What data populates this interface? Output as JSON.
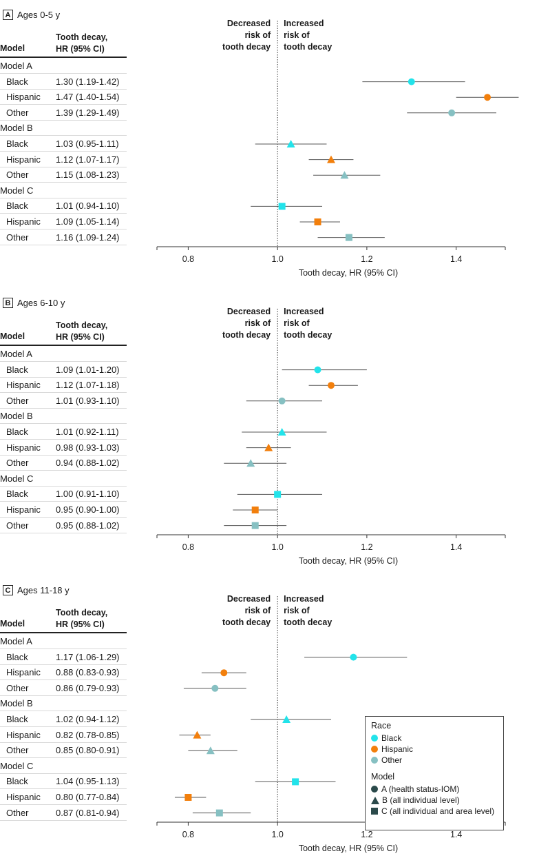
{
  "table_headers": {
    "model": "Model",
    "hr_line1": "Tooth decay,",
    "hr_line2": "HR (95% CI)"
  },
  "direction_labels": {
    "left": [
      "Decreased",
      "risk of",
      "tooth decay"
    ],
    "right": [
      "Increased",
      "risk of",
      "tooth decay"
    ]
  },
  "legend": {
    "race_title": "Race",
    "race_items": [
      {
        "label": "Black",
        "color": "#22e3ea"
      },
      {
        "label": "Hispanic",
        "color": "#f27f0c"
      },
      {
        "label": "Other",
        "color": "#86c0c2"
      }
    ],
    "model_title": "Model",
    "model_items": [
      {
        "label": "A (health status-IOM)",
        "shape": "circle-icon"
      },
      {
        "label": "B (all individual level)",
        "shape": "triangle-icon"
      },
      {
        "label": "C (all individual and area level)",
        "shape": "square-icon"
      }
    ],
    "symbol_color": "#2b4a4b"
  },
  "chart_data": [
    {
      "type": "forest",
      "panel": "A",
      "title": "Ages 0-5 y",
      "xlabel": "Tooth decay, HR (95% CI)",
      "xlim": [
        0.73,
        1.51
      ],
      "xticks": [
        "0.8",
        "1.0",
        "1.2",
        "1.4"
      ],
      "reference_line": 1.0,
      "groups": [
        {
          "model": "Model A",
          "shape": "circle",
          "rows": [
            {
              "race": "Black",
              "label": "1.30 (1.19-1.42)",
              "hr": 1.3,
              "lo": 1.19,
              "hi": 1.42
            },
            {
              "race": "Hispanic",
              "label": "1.47 (1.40-1.54)",
              "hr": 1.47,
              "lo": 1.4,
              "hi": 1.54
            },
            {
              "race": "Other",
              "label": "1.39 (1.29-1.49)",
              "hr": 1.39,
              "lo": 1.29,
              "hi": 1.49
            }
          ]
        },
        {
          "model": "Model B",
          "shape": "triangle",
          "rows": [
            {
              "race": "Black",
              "label": "1.03 (0.95-1.11)",
              "hr": 1.03,
              "lo": 0.95,
              "hi": 1.11
            },
            {
              "race": "Hispanic",
              "label": "1.12 (1.07-1.17)",
              "hr": 1.12,
              "lo": 1.07,
              "hi": 1.17
            },
            {
              "race": "Other",
              "label": "1.15 (1.08-1.23)",
              "hr": 1.15,
              "lo": 1.08,
              "hi": 1.23
            }
          ]
        },
        {
          "model": "Model C",
          "shape": "square",
          "rows": [
            {
              "race": "Black",
              "label": "1.01 (0.94-1.10)",
              "hr": 1.01,
              "lo": 0.94,
              "hi": 1.1
            },
            {
              "race": "Hispanic",
              "label": "1.09 (1.05-1.14)",
              "hr": 1.09,
              "lo": 1.05,
              "hi": 1.14
            },
            {
              "race": "Other",
              "label": "1.16 (1.09-1.24)",
              "hr": 1.16,
              "lo": 1.09,
              "hi": 1.24
            }
          ]
        }
      ]
    },
    {
      "type": "forest",
      "panel": "B",
      "title": "Ages 6-10 y",
      "xlabel": "Tooth decay, HR (95% CI)",
      "xlim": [
        0.73,
        1.51
      ],
      "xticks": [
        "0.8",
        "1.0",
        "1.2",
        "1.4"
      ],
      "reference_line": 1.0,
      "groups": [
        {
          "model": "Model A",
          "shape": "circle",
          "rows": [
            {
              "race": "Black",
              "label": "1.09 (1.01-1.20)",
              "hr": 1.09,
              "lo": 1.01,
              "hi": 1.2
            },
            {
              "race": "Hispanic",
              "label": "1.12 (1.07-1.18)",
              "hr": 1.12,
              "lo": 1.07,
              "hi": 1.18
            },
            {
              "race": "Other",
              "label": "1.01 (0.93-1.10)",
              "hr": 1.01,
              "lo": 0.93,
              "hi": 1.1
            }
          ]
        },
        {
          "model": "Model B",
          "shape": "triangle",
          "rows": [
            {
              "race": "Black",
              "label": "1.01 (0.92-1.11)",
              "hr": 1.01,
              "lo": 0.92,
              "hi": 1.11
            },
            {
              "race": "Hispanic",
              "label": "0.98 (0.93-1.03)",
              "hr": 0.98,
              "lo": 0.93,
              "hi": 1.03
            },
            {
              "race": "Other",
              "label": "0.94 (0.88-1.02)",
              "hr": 0.94,
              "lo": 0.88,
              "hi": 1.02
            }
          ]
        },
        {
          "model": "Model C",
          "shape": "square",
          "rows": [
            {
              "race": "Black",
              "label": "1.00 (0.91-1.10)",
              "hr": 1.0,
              "lo": 0.91,
              "hi": 1.1
            },
            {
              "race": "Hispanic",
              "label": "0.95 (0.90-1.00)",
              "hr": 0.95,
              "lo": 0.9,
              "hi": 1.0
            },
            {
              "race": "Other",
              "label": "0.95 (0.88-1.02)",
              "hr": 0.95,
              "lo": 0.88,
              "hi": 1.02
            }
          ]
        }
      ]
    },
    {
      "type": "forest",
      "panel": "C",
      "title": "Ages 11-18 y",
      "xlabel": "Tooth decay, HR (95% CI)",
      "xlim": [
        0.73,
        1.51
      ],
      "xticks": [
        "0.8",
        "1.0",
        "1.2",
        "1.4"
      ],
      "reference_line": 1.0,
      "groups": [
        {
          "model": "Model A",
          "shape": "circle",
          "rows": [
            {
              "race": "Black",
              "label": "1.17 (1.06-1.29)",
              "hr": 1.17,
              "lo": 1.06,
              "hi": 1.29
            },
            {
              "race": "Hispanic",
              "label": "0.88 (0.83-0.93)",
              "hr": 0.88,
              "lo": 0.83,
              "hi": 0.93
            },
            {
              "race": "Other",
              "label": "0.86 (0.79-0.93)",
              "hr": 0.86,
              "lo": 0.79,
              "hi": 0.93
            }
          ]
        },
        {
          "model": "Model B",
          "shape": "triangle",
          "rows": [
            {
              "race": "Black",
              "label": "1.02 (0.94-1.12)",
              "hr": 1.02,
              "lo": 0.94,
              "hi": 1.12
            },
            {
              "race": "Hispanic",
              "label": "0.82 (0.78-0.85)",
              "hr": 0.82,
              "lo": 0.78,
              "hi": 0.85
            },
            {
              "race": "Other",
              "label": "0.85 (0.80-0.91)",
              "hr": 0.85,
              "lo": 0.8,
              "hi": 0.91
            }
          ]
        },
        {
          "model": "Model C",
          "shape": "square",
          "rows": [
            {
              "race": "Black",
              "label": "1.04 (0.95-1.13)",
              "hr": 1.04,
              "lo": 0.95,
              "hi": 1.13
            },
            {
              "race": "Hispanic",
              "label": "0.80 (0.77-0.84)",
              "hr": 0.8,
              "lo": 0.77,
              "hi": 0.84
            },
            {
              "race": "Other",
              "label": "0.87 (0.81-0.94)",
              "hr": 0.87,
              "lo": 0.81,
              "hi": 0.94
            }
          ]
        }
      ]
    }
  ]
}
